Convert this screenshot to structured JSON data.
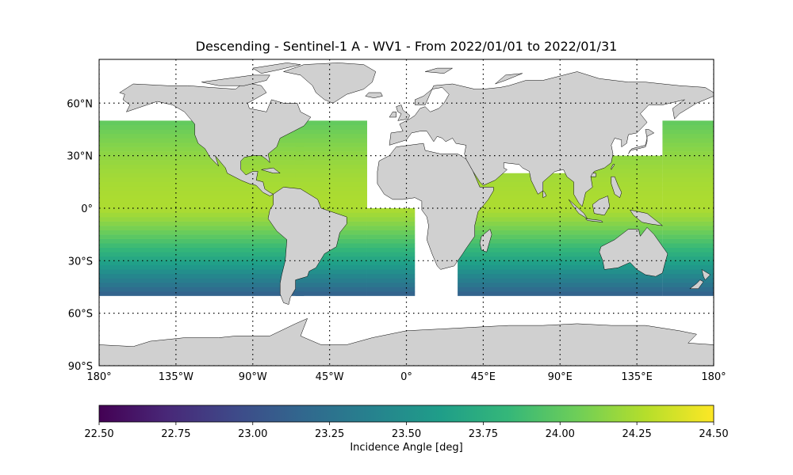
{
  "title": "Descending - Sentinel-1 A - WV1 - From 2022/01/01 to 2022/01/31",
  "map": {
    "projection": "PlateCarree",
    "lon_range": [
      -180,
      180
    ],
    "lat_range": [
      -90,
      85
    ],
    "grid": "dotted",
    "land_color": "#d0d0d0",
    "ocean_color": "#ffffff",
    "lon_ticks": [
      {
        "value": -180,
        "label": "180°"
      },
      {
        "value": -135,
        "label": "135°W"
      },
      {
        "value": -90,
        "label": "90°W"
      },
      {
        "value": -45,
        "label": "45°W"
      },
      {
        "value": 0,
        "label": "0°"
      },
      {
        "value": 45,
        "label": "45°E"
      },
      {
        "value": 90,
        "label": "90°E"
      },
      {
        "value": 135,
        "label": "135°E"
      },
      {
        "value": 180,
        "label": "180°"
      }
    ],
    "lat_ticks": [
      {
        "value": 60,
        "label": "60°N"
      },
      {
        "value": 30,
        "label": "30°N"
      },
      {
        "value": 0,
        "label": "0°"
      },
      {
        "value": -30,
        "label": "30°S"
      },
      {
        "value": -60,
        "label": "60°S"
      },
      {
        "value": -90,
        "label": "90°S"
      }
    ]
  },
  "data_field": {
    "variable": "incidence angle",
    "lat_coverage": [
      -50,
      50
    ],
    "value_near_equator": 24.25,
    "value_at_50N": 24.0,
    "value_at_50S": 23.1,
    "swaths": [
      {
        "lon_range": [
          -180,
          -60
        ],
        "lat_range": [
          -50,
          50
        ]
      },
      {
        "lon_range": [
          -65,
          -23
        ],
        "lat_range": [
          -50,
          50
        ]
      },
      {
        "lon_range": [
          -23,
          5
        ],
        "lat_range": [
          -50,
          0
        ]
      },
      {
        "lon_range": [
          30,
          108
        ],
        "lat_range": [
          -50,
          20
        ]
      },
      {
        "lon_range": [
          108,
          150
        ],
        "lat_range": [
          -50,
          30
        ]
      },
      {
        "lon_range": [
          150,
          180
        ],
        "lat_range": [
          -50,
          50
        ]
      }
    ]
  },
  "colorbar": {
    "colormap": "viridis",
    "min": 22.5,
    "max": 24.5,
    "ticks": [
      "22.50",
      "22.75",
      "23.00",
      "23.25",
      "23.50",
      "23.75",
      "24.00",
      "24.25",
      "24.50"
    ],
    "label": "Incidence Angle [deg]",
    "colors": [
      "#440154",
      "#482878",
      "#3e4a89",
      "#31688e",
      "#26828e",
      "#1f9e89",
      "#35b779",
      "#6ece58",
      "#b5de2b",
      "#fde725"
    ]
  }
}
